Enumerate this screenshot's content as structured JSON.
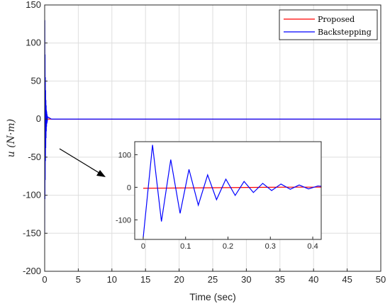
{
  "chart_data": [
    {
      "type": "line",
      "title": "",
      "xlabel": "Time (sec)",
      "ylabel": "u (N·m)",
      "xlim": [
        0,
        50
      ],
      "ylim": [
        -200,
        150
      ],
      "xticks": [
        0,
        5,
        10,
        15,
        20,
        25,
        30,
        35,
        40,
        45,
        50
      ],
      "yticks": [
        -200,
        -150,
        -100,
        -50,
        0,
        50,
        100,
        150
      ],
      "grid": true,
      "legend_position": "top-right",
      "series": [
        {
          "name": "Proposed",
          "color": "#ff0000",
          "x": [
            0,
            0.05,
            0.1,
            0.2,
            0.3,
            0.42,
            1,
            50
          ],
          "y": [
            -3,
            -2,
            -1.5,
            -1,
            -0.5,
            0,
            0,
            0
          ]
        },
        {
          "name": "Backstepping",
          "color": "#0000ff",
          "x": [
            0,
            0.02,
            0.04,
            0.06,
            0.08,
            0.1,
            0.12,
            0.14,
            0.16,
            0.18,
            0.2,
            0.22,
            0.24,
            0.26,
            0.28,
            0.3,
            0.32,
            0.34,
            0.36,
            0.38,
            0.4,
            0.42,
            1,
            50
          ],
          "y": [
            -150,
            130,
            -105,
            85,
            -80,
            55,
            -55,
            38,
            -38,
            25,
            -25,
            18,
            -16,
            12,
            -10,
            10,
            -6,
            7,
            -5,
            5,
            -3,
            3,
            0,
            0
          ]
        }
      ]
    },
    {
      "type": "line",
      "title": "",
      "inset": true,
      "xlim": [
        -0.02,
        0.42
      ],
      "ylim": [
        -160,
        140
      ],
      "xticks": [
        0,
        0.1,
        0.2,
        0.3,
        0.4
      ],
      "yticks": [
        -100,
        0,
        100
      ],
      "grid": false,
      "series": [
        {
          "name": "Proposed",
          "color": "#ff0000",
          "x": [
            0,
            0.05,
            0.1,
            0.15,
            0.2,
            0.25,
            0.3,
            0.35,
            0.42
          ],
          "y": [
            -3,
            -2.5,
            -2,
            -1.5,
            -1,
            -0.5,
            0,
            0.5,
            0.5
          ]
        },
        {
          "name": "Backstepping",
          "color": "#0000ff",
          "x": [
            0,
            0.022,
            0.043,
            0.065,
            0.087,
            0.108,
            0.13,
            0.152,
            0.173,
            0.195,
            0.217,
            0.238,
            0.26,
            0.282,
            0.303,
            0.325,
            0.347,
            0.368,
            0.39,
            0.412,
            0.42
          ],
          "y": [
            -155,
            130,
            -105,
            85,
            -80,
            55,
            -55,
            38,
            -38,
            25,
            -25,
            18,
            -16,
            12,
            -10,
            10,
            -6,
            7,
            -5,
            4,
            3
          ]
        }
      ]
    }
  ]
}
